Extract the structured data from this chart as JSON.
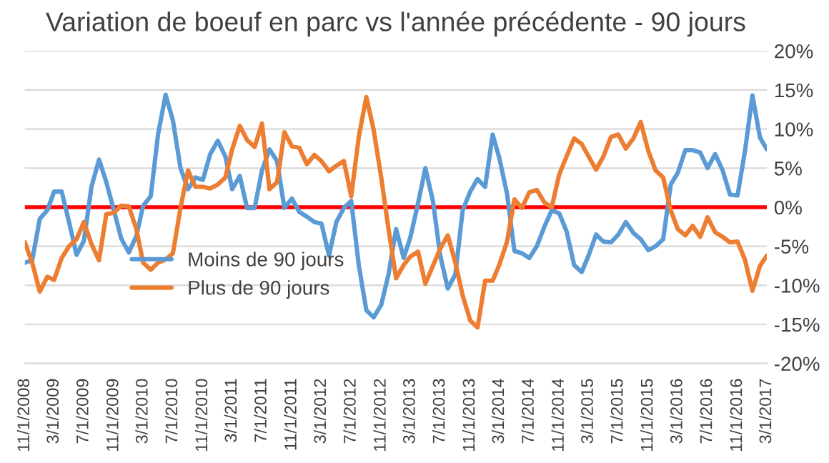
{
  "chart_data": {
    "type": "line",
    "title": "Variation de boeuf en parc vs l'année précédente - 90 jours",
    "x": [
      "2008-11",
      "2008-12",
      "2009-01",
      "2009-02",
      "2009-03",
      "2009-04",
      "2009-05",
      "2009-06",
      "2009-07",
      "2009-08",
      "2009-09",
      "2009-10",
      "2009-11",
      "2009-12",
      "2010-01",
      "2010-02",
      "2010-03",
      "2010-04",
      "2010-05",
      "2010-06",
      "2010-07",
      "2010-08",
      "2010-09",
      "2010-10",
      "2010-11",
      "2010-12",
      "2011-01",
      "2011-02",
      "2011-03",
      "2011-04",
      "2011-05",
      "2011-06",
      "2011-07",
      "2011-08",
      "2011-09",
      "2011-10",
      "2011-11",
      "2011-12",
      "2012-01",
      "2012-02",
      "2012-03",
      "2012-04",
      "2012-05",
      "2012-06",
      "2012-07",
      "2012-08",
      "2012-09",
      "2012-10",
      "2012-11",
      "2012-12",
      "2013-01",
      "2013-02",
      "2013-03",
      "2013-04",
      "2013-05",
      "2013-06",
      "2013-07",
      "2013-08",
      "2013-09",
      "2013-10",
      "2013-11",
      "2013-12",
      "2014-01",
      "2014-02",
      "2014-03",
      "2014-04",
      "2014-05",
      "2014-06",
      "2014-07",
      "2014-08",
      "2014-09",
      "2014-10",
      "2014-11",
      "2014-12",
      "2015-01",
      "2015-02",
      "2015-03",
      "2015-04",
      "2015-05",
      "2015-06",
      "2015-07",
      "2015-08",
      "2015-09",
      "2015-10",
      "2015-11",
      "2015-12",
      "2016-01",
      "2016-02",
      "2016-03",
      "2016-04",
      "2016-05",
      "2016-06",
      "2016-07",
      "2016-08",
      "2016-09",
      "2016-10",
      "2016-11",
      "2016-12",
      "2017-01",
      "2017-02",
      "2017-03"
    ],
    "series": [
      {
        "name": "Moins de 90 jours",
        "color": "#5b9bd5",
        "values": [
          -7.1,
          -6.8,
          -1.5,
          -0.4,
          2.0,
          2.0,
          -1.9,
          -6.1,
          -4.3,
          2.6,
          6.1,
          3.2,
          -0.4,
          -4.0,
          -5.8,
          -3.7,
          0.2,
          1.4,
          9.3,
          14.4,
          11.1,
          5.0,
          2.3,
          3.8,
          3.5,
          6.8,
          8.5,
          6.5,
          2.3,
          4.0,
          -0.1,
          -0.1,
          4.7,
          7.4,
          5.9,
          -0.1,
          1.1,
          -0.6,
          -1.2,
          -1.9,
          -2.1,
          -6.2,
          -1.9,
          -0.1,
          0.8,
          -7.4,
          -13.2,
          -14.1,
          -12.5,
          -8.6,
          -2.8,
          -6.5,
          -3.8,
          0.5,
          5.0,
          0.8,
          -6.2,
          -10.4,
          -8.6,
          -0.4,
          2.0,
          3.6,
          2.6,
          9.3,
          6.2,
          1.7,
          -5.6,
          -5.9,
          -6.5,
          -5.0,
          -2.5,
          -0.4,
          -0.8,
          -3.1,
          -7.4,
          -8.3,
          -6.2,
          -3.5,
          -4.4,
          -4.5,
          -3.5,
          -1.9,
          -3.3,
          -4.1,
          -5.5,
          -5.0,
          -4.1,
          2.9,
          4.4,
          7.3,
          7.3,
          7.0,
          5.0,
          6.8,
          4.7,
          1.6,
          1.5,
          7.1,
          14.3,
          8.9,
          7.4
        ]
      },
      {
        "name": "Plus de 90 jours",
        "color": "#ed7d31",
        "values": [
          -4.5,
          -7.1,
          -10.8,
          -8.9,
          -9.3,
          -6.5,
          -5.0,
          -4.1,
          -1.9,
          -4.7,
          -6.8,
          -0.9,
          -0.7,
          0.2,
          0.1,
          -2.8,
          -7.1,
          -8.0,
          -7.1,
          -6.7,
          -5.9,
          -0.1,
          4.7,
          2.6,
          2.6,
          2.4,
          2.9,
          3.8,
          7.4,
          10.4,
          8.6,
          7.7,
          10.7,
          2.3,
          3.2,
          9.6,
          7.8,
          7.6,
          5.5,
          6.7,
          5.9,
          4.6,
          5.3,
          5.9,
          1.4,
          9.0,
          14.1,
          9.9,
          3.8,
          -2.8,
          -9.1,
          -7.4,
          -6.3,
          -5.7,
          -9.8,
          -7.5,
          -5.3,
          -3.6,
          -7.1,
          -11.3,
          -14.5,
          -15.4,
          -9.4,
          -9.4,
          -7.3,
          -4.4,
          1.0,
          -0.1,
          1.9,
          2.2,
          0.6,
          0.0,
          4.2,
          6.5,
          8.8,
          8.1,
          6.5,
          4.8,
          6.5,
          9.0,
          9.3,
          7.5,
          8.8,
          10.9,
          7.2,
          4.7,
          3.8,
          -0.4,
          -2.8,
          -3.6,
          -2.4,
          -3.8,
          -1.3,
          -3.2,
          -3.8,
          -4.5,
          -4.4,
          -6.7,
          -10.7,
          -7.5,
          -6.2
        ]
      }
    ],
    "xlim": [
      "2008-11",
      "2017-03"
    ],
    "xticks": [
      {
        "value": "2008-11",
        "label": "11/1/2008"
      },
      {
        "value": "2009-03",
        "label": "3/1/2009"
      },
      {
        "value": "2009-07",
        "label": "7/1/2009"
      },
      {
        "value": "2009-11",
        "label": "11/1/2009"
      },
      {
        "value": "2010-03",
        "label": "3/1/2010"
      },
      {
        "value": "2010-07",
        "label": "7/1/2010"
      },
      {
        "value": "2010-11",
        "label": "11/1/2010"
      },
      {
        "value": "2011-03",
        "label": "3/1/2011"
      },
      {
        "value": "2011-07",
        "label": "7/1/2011"
      },
      {
        "value": "2011-11",
        "label": "11/1/2011"
      },
      {
        "value": "2012-03",
        "label": "3/1/2012"
      },
      {
        "value": "2012-07",
        "label": "7/1/2012"
      },
      {
        "value": "2012-11",
        "label": "11/1/2012"
      },
      {
        "value": "2013-03",
        "label": "3/1/2013"
      },
      {
        "value": "2013-07",
        "label": "7/1/2013"
      },
      {
        "value": "2013-11",
        "label": "11/1/2013"
      },
      {
        "value": "2014-03",
        "label": "3/1/2014"
      },
      {
        "value": "2014-07",
        "label": "7/1/2014"
      },
      {
        "value": "2014-11",
        "label": "11/1/2014"
      },
      {
        "value": "2015-03",
        "label": "3/1/2015"
      },
      {
        "value": "2015-07",
        "label": "7/1/2015"
      },
      {
        "value": "2015-11",
        "label": "11/1/2015"
      },
      {
        "value": "2016-03",
        "label": "3/1/2016"
      },
      {
        "value": "2016-07",
        "label": "7/1/2016"
      },
      {
        "value": "2016-11",
        "label": "11/1/2016"
      },
      {
        "value": "2017-03",
        "label": "3/1/2017"
      }
    ],
    "ylim": [
      -20,
      20
    ],
    "yticks": [
      {
        "value": -20,
        "label": "-20%"
      },
      {
        "value": -15,
        "label": "-15%"
      },
      {
        "value": -10,
        "label": "-10%"
      },
      {
        "value": -5,
        "label": "-5%"
      },
      {
        "value": 0,
        "label": "0%"
      },
      {
        "value": 5,
        "label": "5%"
      },
      {
        "value": 10,
        "label": "10%"
      },
      {
        "value": 15,
        "label": "15%"
      },
      {
        "value": 20,
        "label": "20%"
      }
    ],
    "ref_lines": [
      {
        "axis": "y",
        "value": 0,
        "color": "#ff0000"
      }
    ],
    "grid": "y",
    "legend": "bottom left",
    "marker": "none",
    "line_style": "solid"
  }
}
